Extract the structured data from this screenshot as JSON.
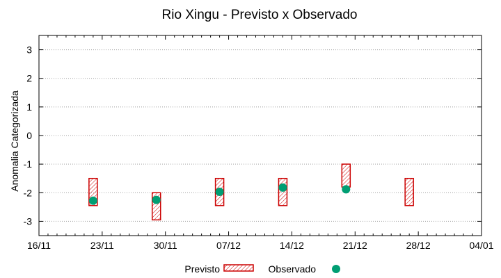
{
  "chart_data": {
    "type": "range_with_points",
    "title": "Rio Xingu - Previsto x Observado",
    "xlabel": "",
    "ylabel": "Anomalia Categorizada",
    "ylim": [
      -3.5,
      3.5
    ],
    "yticks": [
      3,
      2,
      1,
      0,
      -1,
      -2,
      -3
    ],
    "ytick_labels": [
      "3",
      "2",
      "1",
      "0",
      "-1",
      "-2",
      "-3"
    ],
    "xlim_days": [
      0,
      49
    ],
    "xticks": [
      {
        "day": 0,
        "label": "16/11"
      },
      {
        "day": 7,
        "label": "23/11"
      },
      {
        "day": 14,
        "label": "30/11"
      },
      {
        "day": 21,
        "label": "07/12"
      },
      {
        "day": 28,
        "label": "14/12"
      },
      {
        "day": 35,
        "label": "21/12"
      },
      {
        "day": 42,
        "label": "28/12"
      },
      {
        "day": 49,
        "label": "04/01"
      }
    ],
    "grid": true,
    "legend_position": "bottom-center",
    "series": [
      {
        "name": "Previsto",
        "kind": "range-box",
        "color": "#cc0000",
        "points": [
          {
            "day": 6,
            "low": -2.45,
            "high": -1.5
          },
          {
            "day": 13,
            "low": -2.95,
            "high": -2.0
          },
          {
            "day": 20,
            "low": -2.45,
            "high": -1.5
          },
          {
            "day": 27,
            "low": -2.45,
            "high": -1.5
          },
          {
            "day": 34,
            "low": -1.8,
            "high": -1.0
          },
          {
            "day": 41,
            "low": -2.45,
            "high": -1.5
          }
        ]
      },
      {
        "name": "Observado",
        "kind": "point",
        "color": "#009e73",
        "points": [
          {
            "day": 6,
            "value": -2.28
          },
          {
            "day": 13,
            "value": -2.25
          },
          {
            "day": 20,
            "value": -1.97
          },
          {
            "day": 27,
            "value": -1.82
          },
          {
            "day": 34,
            "value": -1.88
          }
        ]
      }
    ]
  }
}
